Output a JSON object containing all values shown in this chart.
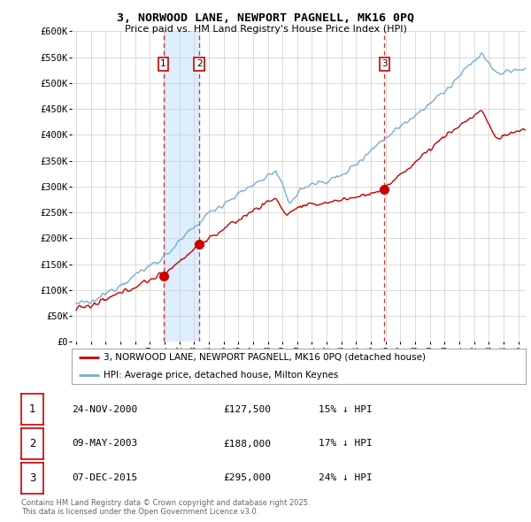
{
  "title": "3, NORWOOD LANE, NEWPORT PAGNELL, MK16 0PQ",
  "subtitle": "Price paid vs. HM Land Registry's House Price Index (HPI)",
  "ylabel_ticks": [
    "£0",
    "£50K",
    "£100K",
    "£150K",
    "£200K",
    "£250K",
    "£300K",
    "£350K",
    "£400K",
    "£450K",
    "£500K",
    "£550K",
    "£600K"
  ],
  "ylim": [
    0,
    600000
  ],
  "xlim_start": 1995,
  "xlim_end": 2026,
  "sale_color": "#cc0000",
  "hpi_color": "#7aadd4",
  "shade_color": "#ddeeff",
  "sale_dates": [
    2000.917,
    2003.354,
    2015.921
  ],
  "sale_prices": [
    127500,
    188000,
    295000
  ],
  "sale_labels": [
    "1",
    "2",
    "3"
  ],
  "vline_dates": [
    2000.917,
    2003.354,
    2015.921
  ],
  "legend_sale": "3, NORWOOD LANE, NEWPORT PAGNELL, MK16 0PQ (detached house)",
  "legend_hpi": "HPI: Average price, detached house, Milton Keynes",
  "table_rows": [
    {
      "label": "1",
      "date": "24-NOV-2000",
      "price": "£127,500",
      "hpi": "15% ↓ HPI"
    },
    {
      "label": "2",
      "date": "09-MAY-2003",
      "price": "£188,000",
      "hpi": "17% ↓ HPI"
    },
    {
      "label": "3",
      "date": "07-DEC-2015",
      "price": "£295,000",
      "hpi": "24% ↓ HPI"
    }
  ],
  "footnote": "Contains HM Land Registry data © Crown copyright and database right 2025.\nThis data is licensed under the Open Government Licence v3.0.",
  "background_color": "#ffffff",
  "grid_color": "#cccccc"
}
